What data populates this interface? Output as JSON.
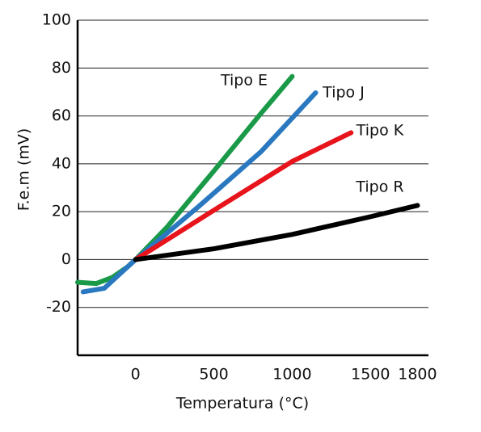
{
  "chart_data": {
    "type": "line",
    "xlabel": "Temperatura (°C)",
    "ylabel": "F.e.m (mV)",
    "xlim": [
      -370,
      1870
    ],
    "ylim": [
      -40,
      100
    ],
    "xticks": [
      0,
      500,
      1000,
      1500,
      1800
    ],
    "yticks": [
      -20,
      0,
      20,
      40,
      60,
      80,
      100
    ],
    "grid": true,
    "series": [
      {
        "name": "Tipo E",
        "color": "#1a9a48",
        "x": [
          -370,
          -250,
          -150,
          -50,
          0,
          200,
          500,
          800,
          1000
        ],
        "values": [
          -9.5,
          -10,
          -7.5,
          -3,
          0,
          13.5,
          37,
          61,
          76.5
        ]
      },
      {
        "name": "Tipo J",
        "color": "#2a78c0",
        "x": [
          -335,
          -200,
          -100,
          0,
          400,
          800,
          1150
        ],
        "values": [
          -13.5,
          -12,
          -6,
          0,
          22,
          45,
          69.7
        ]
      },
      {
        "name": "Tipo K",
        "color": "#e8141c",
        "x": [
          0,
          500,
          1000,
          1376
        ],
        "values": [
          0,
          20.6,
          41,
          53
        ]
      },
      {
        "name": "Tipo R",
        "color": "#000000",
        "x": [
          0,
          500,
          1000,
          1500,
          1800
        ],
        "values": [
          0,
          4.5,
          10.5,
          17.9,
          22.6
        ]
      }
    ]
  }
}
